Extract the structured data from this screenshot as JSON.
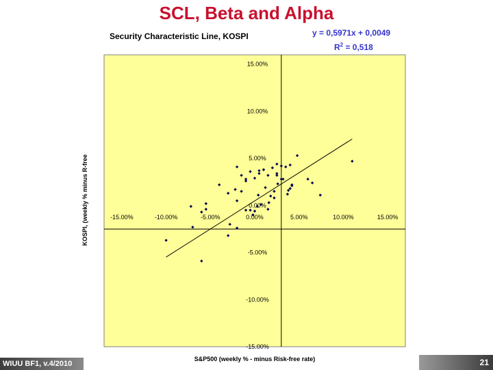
{
  "slide": {
    "title": "SCL, Beta and Alpha",
    "footer_left": "WIUU BF1, v.4/2010",
    "page_number": "21"
  },
  "colors": {
    "plot_background": "#ffff99",
    "title": "#c8102e",
    "annotation": "#3333cc",
    "points": "#0a0a50"
  },
  "chart_data": {
    "type": "scatter",
    "title": "Security Characteristic Line, KOSPI",
    "xlabel": "S&P500 (weekly % - minus Risk-free rate)",
    "ylabel": "KOSPI, (weekly % minus R-free",
    "xlim": [
      -0.17,
      0.17
    ],
    "ylim": [
      -0.15,
      0.16
    ],
    "grid": false,
    "x_ticks": [
      -0.15,
      -0.1,
      -0.05,
      0.0,
      0.05,
      0.1,
      0.15
    ],
    "x_tick_labels": [
      "-15.00%",
      "-10.00%",
      "-5.00%",
      "0.00%",
      "5.00%",
      "10.00%",
      "15.00%"
    ],
    "y_ticks": [
      -0.15,
      -0.1,
      -0.05,
      0.0,
      0.05,
      0.1,
      0.15
    ],
    "y_tick_labels": [
      "-15.00%",
      "-10.00%",
      "-5.00%",
      "0.00%",
      "5.00%",
      "10.00%",
      "15.00%"
    ],
    "reference_lines": {
      "x": 0.03,
      "y": -0.025
    },
    "trendline": {
      "slope": 0.5971,
      "intercept": 0.0049
    },
    "equation": "y = 0,5971x + 0,0049",
    "r_squared_label": "R",
    "r_squared_exponent": "2",
    "r_squared_value": " = 0,518",
    "x": [
      0.038,
      0.042,
      0.074,
      0.11,
      0.04,
      0.048,
      0.06,
      0.065,
      -0.005,
      0.01,
      -0.02,
      0.025,
      0.02,
      0.03,
      0.035,
      0.015,
      0.01,
      0.025,
      0.005,
      0.0,
      -0.01,
      -0.015,
      -0.03,
      -0.04,
      -0.055,
      -0.06,
      -0.07,
      -0.072,
      -0.01,
      -0.015,
      -0.022,
      -0.01,
      0.0,
      -0.005,
      0.003,
      0.007,
      0.018,
      0.026,
      0.03,
      0.022,
      0.037,
      0.042,
      0.012,
      0.005,
      0.015,
      -0.02,
      0.022,
      0.016,
      0.004,
      -0.028,
      -0.03,
      -0.02,
      -0.06,
      -0.1,
      -0.002,
      0.04,
      0.025,
      0.032,
      -0.055
    ],
    "y": [
      0.016,
      0.022,
      0.011,
      0.047,
      0.043,
      0.053,
      0.028,
      0.024,
      0.036,
      0.038,
      0.041,
      0.044,
      0.04,
      0.042,
      0.041,
      0.032,
      0.038,
      0.034,
      0.034,
      0.029,
      0.026,
      0.032,
      0.013,
      0.022,
      0.002,
      -0.007,
      -0.023,
      -0.001,
      0.028,
      0.015,
      0.017,
      -0.005,
      -0.006,
      -0.005,
      -0.001,
      0.001,
      0.01,
      0.023,
      0.028,
      0.008,
      0.012,
      0.021,
      0.019,
      0.037,
      -0.004,
      0.005,
      0.015,
      0.003,
      0.011,
      -0.02,
      -0.032,
      -0.024,
      -0.059,
      -0.037,
      -0.01,
      0.018,
      0.032,
      0.028,
      -0.004
    ]
  }
}
